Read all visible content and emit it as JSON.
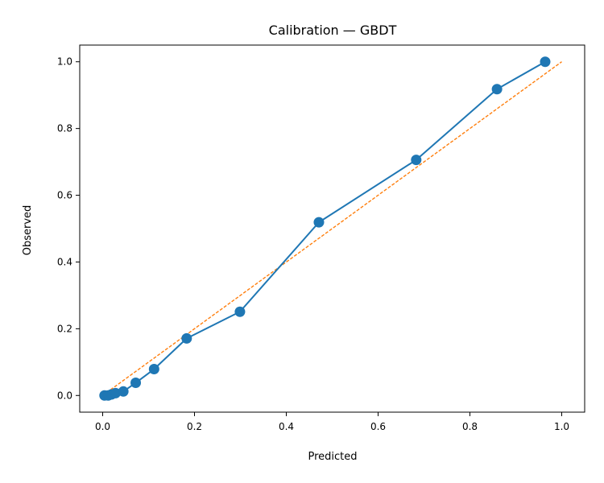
{
  "chart_data": {
    "type": "line",
    "title": "Calibration — GBDT",
    "xlabel": "Predicted",
    "ylabel": "Observed",
    "xlim": [
      -0.05,
      1.05
    ],
    "ylim": [
      -0.05,
      1.05
    ],
    "xticks": [
      0.0,
      0.2,
      0.4,
      0.6,
      0.8,
      1.0
    ],
    "xtick_labels": [
      "0.0",
      "0.2",
      "0.4",
      "0.6",
      "0.8",
      "1.0"
    ],
    "yticks": [
      0.0,
      0.2,
      0.4,
      0.6,
      0.8,
      1.0
    ],
    "ytick_labels": [
      "0.0",
      "0.2",
      "0.4",
      "0.6",
      "0.8",
      "1.0"
    ],
    "grid": false,
    "series": [
      {
        "style": "line-with-markers",
        "color": "#1f77b4",
        "x": [
          0.004,
          0.012,
          0.019,
          0.028,
          0.045,
          0.072,
          0.112,
          0.183,
          0.299,
          0.471,
          0.683,
          0.859,
          0.964
        ],
        "y": [
          0.0,
          0.0,
          0.003,
          0.007,
          0.012,
          0.038,
          0.079,
          0.171,
          0.251,
          0.519,
          0.706,
          0.918,
          1.0
        ]
      },
      {
        "style": "dashed-reference",
        "color": "#ff7f0e",
        "x": [
          0.0,
          1.0
        ],
        "y": [
          0.0,
          1.0
        ]
      }
    ]
  }
}
